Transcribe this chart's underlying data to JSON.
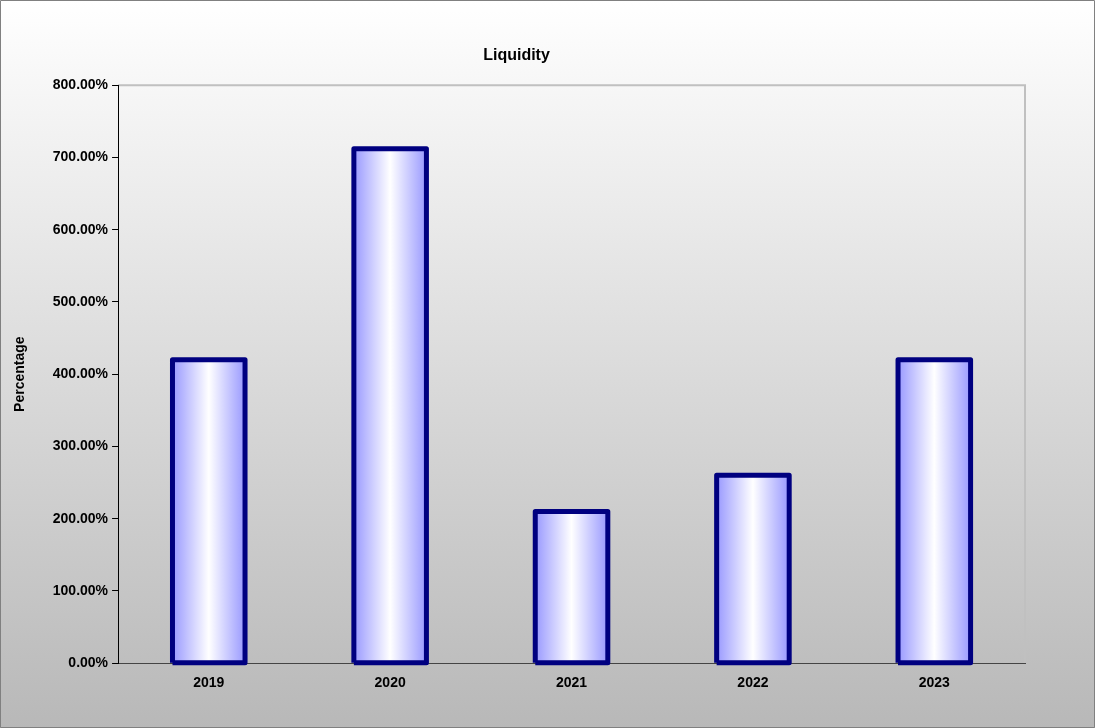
{
  "chart_data": {
    "type": "bar",
    "title": "Liquidity",
    "ylabel": "Percentage",
    "categories": [
      "2019",
      "2020",
      "2021",
      "2022",
      "2023"
    ],
    "values": [
      420,
      712,
      210,
      260,
      420
    ],
    "color": "#000080",
    "ylim": [
      0,
      800
    ],
    "yticks": [
      {
        "value": 0,
        "label": "0.00%"
      },
      {
        "value": 100,
        "label": "100.00%"
      },
      {
        "value": 200,
        "label": "200.00%"
      },
      {
        "value": 300,
        "label": "300.00%"
      },
      {
        "value": 400,
        "label": "400.00%"
      },
      {
        "value": 500,
        "label": "500.00%"
      },
      {
        "value": 600,
        "label": "600.00%"
      },
      {
        "value": 700,
        "label": "700.00%"
      },
      {
        "value": 800,
        "label": "800.00%"
      }
    ],
    "grid": false,
    "legend": false
  }
}
